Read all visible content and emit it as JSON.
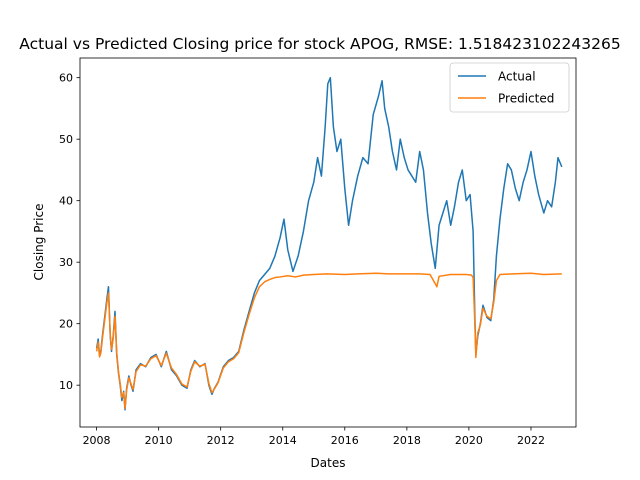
{
  "chart_data": {
    "type": "line",
    "title": "Actual vs Predicted Closing price for stock APOG, RMSE: 1.518423102243265",
    "xlabel": "Dates",
    "ylabel": "Closing Price",
    "xlim": [
      "2007-06-20",
      "2023-06-15"
    ],
    "ylim": [
      3.2,
      63.2
    ],
    "x_ticks": [
      "2008",
      "2010",
      "2012",
      "2014",
      "2016",
      "2018",
      "2020",
      "2022"
    ],
    "y_ticks": [
      10,
      20,
      30,
      40,
      50,
      60
    ],
    "grid": false,
    "legend_position": "top-right",
    "series": [
      {
        "name": "Actual",
        "color": "#1f77b4",
        "points": [
          [
            "2008-01-02",
            16.0
          ],
          [
            "2008-01-20",
            17.5
          ],
          [
            "2008-02-05",
            14.8
          ],
          [
            "2008-02-20",
            15.5
          ],
          [
            "2008-03-10",
            18.0
          ],
          [
            "2008-04-01",
            20.5
          ],
          [
            "2008-05-01",
            24.0
          ],
          [
            "2008-05-20",
            26.0
          ],
          [
            "2008-06-10",
            18.0
          ],
          [
            "2008-06-25",
            15.5
          ],
          [
            "2008-07-15",
            18.0
          ],
          [
            "2008-08-05",
            22.0
          ],
          [
            "2008-08-25",
            15.0
          ],
          [
            "2008-09-15",
            12.0
          ],
          [
            "2008-10-05",
            10.0
          ],
          [
            "2008-10-25",
            7.5
          ],
          [
            "2008-11-15",
            9.0
          ],
          [
            "2008-12-01",
            6.0
          ],
          [
            "2008-12-20",
            9.5
          ],
          [
            "2009-01-15",
            11.5
          ],
          [
            "2009-02-10",
            10.0
          ],
          [
            "2009-03-05",
            9.0
          ],
          [
            "2009-04-10",
            12.5
          ],
          [
            "2009-06-01",
            13.5
          ],
          [
            "2009-08-01",
            13.0
          ],
          [
            "2009-10-01",
            14.5
          ],
          [
            "2009-12-01",
            15.0
          ],
          [
            "2010-02-01",
            13.0
          ],
          [
            "2010-04-01",
            15.5
          ],
          [
            "2010-06-01",
            12.5
          ],
          [
            "2010-08-01",
            11.5
          ],
          [
            "2010-10-01",
            10.0
          ],
          [
            "2010-12-01",
            9.5
          ],
          [
            "2011-01-15",
            12.5
          ],
          [
            "2011-03-01",
            14.0
          ],
          [
            "2011-05-01",
            13.0
          ],
          [
            "2011-07-01",
            13.5
          ],
          [
            "2011-08-15",
            10.0
          ],
          [
            "2011-09-20",
            8.5
          ],
          [
            "2011-10-20",
            9.5
          ],
          [
            "2011-12-01",
            10.5
          ],
          [
            "2012-02-01",
            13.0
          ],
          [
            "2012-04-01",
            14.0
          ],
          [
            "2012-06-01",
            14.5
          ],
          [
            "2012-08-01",
            15.5
          ],
          [
            "2012-10-01",
            19.0
          ],
          [
            "2012-12-01",
            22.0
          ],
          [
            "2013-02-01",
            25.0
          ],
          [
            "2013-04-01",
            27.0
          ],
          [
            "2013-06-01",
            28.0
          ],
          [
            "2013-08-01",
            29.0
          ],
          [
            "2013-10-01",
            31.0
          ],
          [
            "2013-12-01",
            34.0
          ],
          [
            "2014-01-15",
            37.0
          ],
          [
            "2014-03-01",
            32.0
          ],
          [
            "2014-05-01",
            28.5
          ],
          [
            "2014-07-01",
            31.0
          ],
          [
            "2014-09-01",
            35.0
          ],
          [
            "2014-11-01",
            40.0
          ],
          [
            "2015-01-01",
            43.0
          ],
          [
            "2015-02-15",
            47.0
          ],
          [
            "2015-04-01",
            44.0
          ],
          [
            "2015-05-15",
            52.0
          ],
          [
            "2015-06-15",
            59.0
          ],
          [
            "2015-07-15",
            60.0
          ],
          [
            "2015-08-20",
            52.0
          ],
          [
            "2015-10-01",
            48.0
          ],
          [
            "2015-11-15",
            50.0
          ],
          [
            "2016-01-01",
            42.0
          ],
          [
            "2016-02-15",
            36.0
          ],
          [
            "2016-04-01",
            40.0
          ],
          [
            "2016-06-01",
            44.0
          ],
          [
            "2016-08-01",
            47.0
          ],
          [
            "2016-10-01",
            46.0
          ],
          [
            "2016-12-01",
            54.0
          ],
          [
            "2017-02-01",
            57.0
          ],
          [
            "2017-03-15",
            59.5
          ],
          [
            "2017-04-15",
            55.0
          ],
          [
            "2017-06-01",
            52.0
          ],
          [
            "2017-07-15",
            48.0
          ],
          [
            "2017-09-01",
            45.0
          ],
          [
            "2017-10-15",
            50.0
          ],
          [
            "2017-12-01",
            47.0
          ],
          [
            "2018-01-15",
            45.0
          ],
          [
            "2018-03-01",
            44.0
          ],
          [
            "2018-04-15",
            43.0
          ],
          [
            "2018-06-01",
            48.0
          ],
          [
            "2018-07-15",
            45.0
          ],
          [
            "2018-09-01",
            38.0
          ],
          [
            "2018-10-15",
            33.0
          ],
          [
            "2018-12-01",
            29.0
          ],
          [
            "2019-01-15",
            36.0
          ],
          [
            "2019-03-01",
            38.0
          ],
          [
            "2019-04-15",
            40.0
          ],
          [
            "2019-06-01",
            36.0
          ],
          [
            "2019-07-15",
            39.0
          ],
          [
            "2019-09-01",
            43.0
          ],
          [
            "2019-10-15",
            45.0
          ],
          [
            "2019-12-01",
            40.0
          ],
          [
            "2020-01-15",
            41.0
          ],
          [
            "2020-02-20",
            35.0
          ],
          [
            "2020-03-10",
            22.0
          ],
          [
            "2020-03-23",
            15.0
          ],
          [
            "2020-04-15",
            18.0
          ],
          [
            "2020-05-15",
            20.0
          ],
          [
            "2020-06-15",
            23.0
          ],
          [
            "2020-08-01",
            21.0
          ],
          [
            "2020-09-15",
            20.5
          ],
          [
            "2020-10-20",
            24.0
          ],
          [
            "2020-11-20",
            31.0
          ],
          [
            "2021-01-01",
            37.0
          ],
          [
            "2021-02-15",
            42.0
          ],
          [
            "2021-04-01",
            46.0
          ],
          [
            "2021-05-15",
            45.0
          ],
          [
            "2021-07-01",
            42.0
          ],
          [
            "2021-08-15",
            40.0
          ],
          [
            "2021-10-01",
            43.0
          ],
          [
            "2021-11-15",
            45.0
          ],
          [
            "2022-01-01",
            48.0
          ],
          [
            "2022-02-15",
            44.0
          ],
          [
            "2022-04-01",
            41.0
          ],
          [
            "2022-06-01",
            38.0
          ],
          [
            "2022-07-15",
            40.0
          ],
          [
            "2022-09-01",
            39.0
          ],
          [
            "2022-10-15",
            43.0
          ],
          [
            "2022-11-15",
            47.0
          ],
          [
            "2022-12-30",
            45.5
          ]
        ]
      },
      {
        "name": "Predicted",
        "color": "#ff7f0e",
        "points": [
          [
            "2008-01-02",
            15.5
          ],
          [
            "2008-01-20",
            17.0
          ],
          [
            "2008-02-05",
            14.6
          ],
          [
            "2008-02-20",
            15.2
          ],
          [
            "2008-03-10",
            17.6
          ],
          [
            "2008-04-01",
            20.0
          ],
          [
            "2008-05-01",
            23.4
          ],
          [
            "2008-05-20",
            25.0
          ],
          [
            "2008-06-10",
            18.3
          ],
          [
            "2008-06-25",
            15.8
          ],
          [
            "2008-07-15",
            17.6
          ],
          [
            "2008-08-05",
            21.2
          ],
          [
            "2008-08-25",
            15.4
          ],
          [
            "2008-09-15",
            12.2
          ],
          [
            "2008-10-05",
            10.3
          ],
          [
            "2008-10-25",
            8.0
          ],
          [
            "2008-11-15",
            8.8
          ],
          [
            "2008-12-01",
            6.2
          ],
          [
            "2008-12-20",
            9.2
          ],
          [
            "2009-01-15",
            11.2
          ],
          [
            "2009-02-10",
            10.2
          ],
          [
            "2009-03-05",
            9.3
          ],
          [
            "2009-04-10",
            12.2
          ],
          [
            "2009-06-01",
            13.3
          ],
          [
            "2009-08-01",
            13.1
          ],
          [
            "2009-10-01",
            14.3
          ],
          [
            "2009-12-01",
            14.8
          ],
          [
            "2010-02-01",
            13.2
          ],
          [
            "2010-04-01",
            15.2
          ],
          [
            "2010-06-01",
            12.8
          ],
          [
            "2010-08-01",
            11.7
          ],
          [
            "2010-10-01",
            10.2
          ],
          [
            "2010-12-01",
            9.7
          ],
          [
            "2011-01-15",
            12.3
          ],
          [
            "2011-03-01",
            13.8
          ],
          [
            "2011-05-01",
            13.1
          ],
          [
            "2011-07-01",
            13.4
          ],
          [
            "2011-08-15",
            10.3
          ],
          [
            "2011-09-20",
            8.8
          ],
          [
            "2011-10-20",
            9.4
          ],
          [
            "2011-12-01",
            10.4
          ],
          [
            "2012-02-01",
            12.8
          ],
          [
            "2012-04-01",
            13.8
          ],
          [
            "2012-06-01",
            14.3
          ],
          [
            "2012-08-01",
            15.3
          ],
          [
            "2012-10-01",
            18.6
          ],
          [
            "2012-12-01",
            21.5
          ],
          [
            "2013-02-01",
            24.2
          ],
          [
            "2013-04-01",
            26.0
          ],
          [
            "2013-06-01",
            26.8
          ],
          [
            "2013-08-01",
            27.2
          ],
          [
            "2013-10-01",
            27.5
          ],
          [
            "2013-12-01",
            27.6
          ],
          [
            "2014-03-01",
            27.8
          ],
          [
            "2014-06-01",
            27.6
          ],
          [
            "2014-09-01",
            27.9
          ],
          [
            "2015-01-01",
            28.0
          ],
          [
            "2015-06-01",
            28.1
          ],
          [
            "2016-01-01",
            28.0
          ],
          [
            "2016-06-01",
            28.1
          ],
          [
            "2017-01-01",
            28.2
          ],
          [
            "2017-06-01",
            28.1
          ],
          [
            "2018-01-01",
            28.1
          ],
          [
            "2018-06-01",
            28.1
          ],
          [
            "2018-10-01",
            28.0
          ],
          [
            "2018-12-01",
            26.5
          ],
          [
            "2018-12-20",
            26.0
          ],
          [
            "2019-01-15",
            27.7
          ],
          [
            "2019-06-01",
            28.0
          ],
          [
            "2019-12-01",
            28.0
          ],
          [
            "2020-02-01",
            27.9
          ],
          [
            "2020-02-20",
            27.5
          ],
          [
            "2020-03-10",
            20.5
          ],
          [
            "2020-03-23",
            14.5
          ],
          [
            "2020-04-15",
            18.5
          ],
          [
            "2020-05-15",
            19.8
          ],
          [
            "2020-06-15",
            22.5
          ],
          [
            "2020-08-01",
            21.2
          ],
          [
            "2020-09-15",
            20.8
          ],
          [
            "2020-10-20",
            23.5
          ],
          [
            "2020-11-20",
            27.0
          ],
          [
            "2021-01-01",
            28.0
          ],
          [
            "2021-06-01",
            28.1
          ],
          [
            "2022-01-01",
            28.2
          ],
          [
            "2022-06-01",
            28.0
          ],
          [
            "2022-12-30",
            28.1
          ]
        ]
      }
    ]
  }
}
